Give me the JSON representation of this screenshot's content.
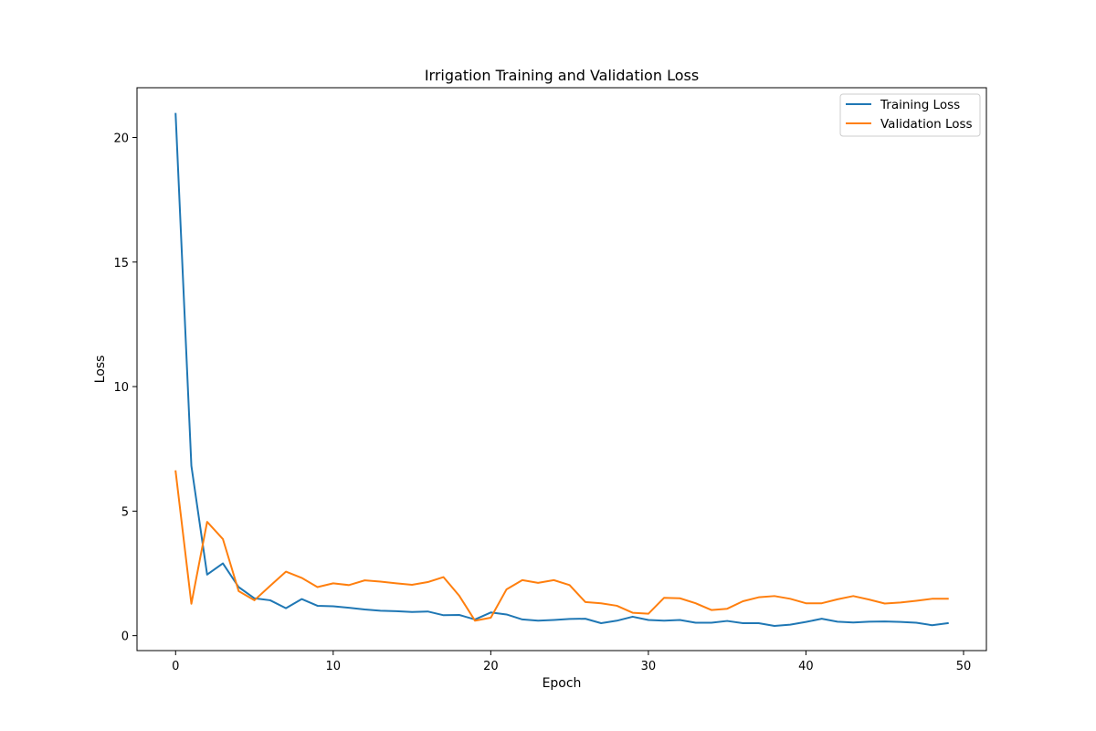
{
  "chart_data": {
    "type": "line",
    "title": "Irrigation Training and Validation Loss",
    "xlabel": "Epoch",
    "ylabel": "Loss",
    "xlim": [
      -2.45,
      51.45
    ],
    "ylim": [
      -0.6,
      22.0
    ],
    "xticks": [
      0,
      10,
      20,
      30,
      40,
      50
    ],
    "yticks": [
      0,
      5,
      10,
      15,
      20
    ],
    "grid": false,
    "legend_position": "top-right",
    "x": [
      0,
      1,
      2,
      3,
      4,
      5,
      6,
      7,
      8,
      9,
      10,
      11,
      12,
      13,
      14,
      15,
      16,
      17,
      18,
      19,
      20,
      21,
      22,
      23,
      24,
      25,
      26,
      27,
      28,
      29,
      30,
      31,
      32,
      33,
      34,
      35,
      36,
      37,
      38,
      39,
      40,
      41,
      42,
      43,
      44,
      45,
      46,
      47,
      48,
      49
    ],
    "series": [
      {
        "name": "Training Loss",
        "color": "#1f77b4",
        "values": [
          20.95,
          6.82,
          2.45,
          2.9,
          1.95,
          1.5,
          1.42,
          1.1,
          1.47,
          1.2,
          1.18,
          1.12,
          1.05,
          1.0,
          0.98,
          0.95,
          0.97,
          0.82,
          0.83,
          0.65,
          0.93,
          0.85,
          0.65,
          0.6,
          0.63,
          0.67,
          0.68,
          0.5,
          0.6,
          0.76,
          0.63,
          0.6,
          0.63,
          0.52,
          0.52,
          0.59,
          0.5,
          0.5,
          0.39,
          0.44,
          0.55,
          0.68,
          0.56,
          0.53,
          0.56,
          0.57,
          0.55,
          0.52,
          0.42,
          0.5
        ]
      },
      {
        "name": "Validation Loss",
        "color": "#ff7f0e",
        "values": [
          6.6,
          1.28,
          4.57,
          3.88,
          1.79,
          1.42,
          2.0,
          2.57,
          2.32,
          1.95,
          2.1,
          2.03,
          2.22,
          2.17,
          2.1,
          2.04,
          2.15,
          2.35,
          1.6,
          0.6,
          0.72,
          1.86,
          2.23,
          2.12,
          2.23,
          2.03,
          1.35,
          1.3,
          1.2,
          0.92,
          0.88,
          1.52,
          1.5,
          1.3,
          1.03,
          1.08,
          1.38,
          1.54,
          1.59,
          1.48,
          1.3,
          1.3,
          1.46,
          1.59,
          1.45,
          1.29,
          1.33,
          1.4,
          1.48,
          1.48
        ]
      }
    ]
  }
}
